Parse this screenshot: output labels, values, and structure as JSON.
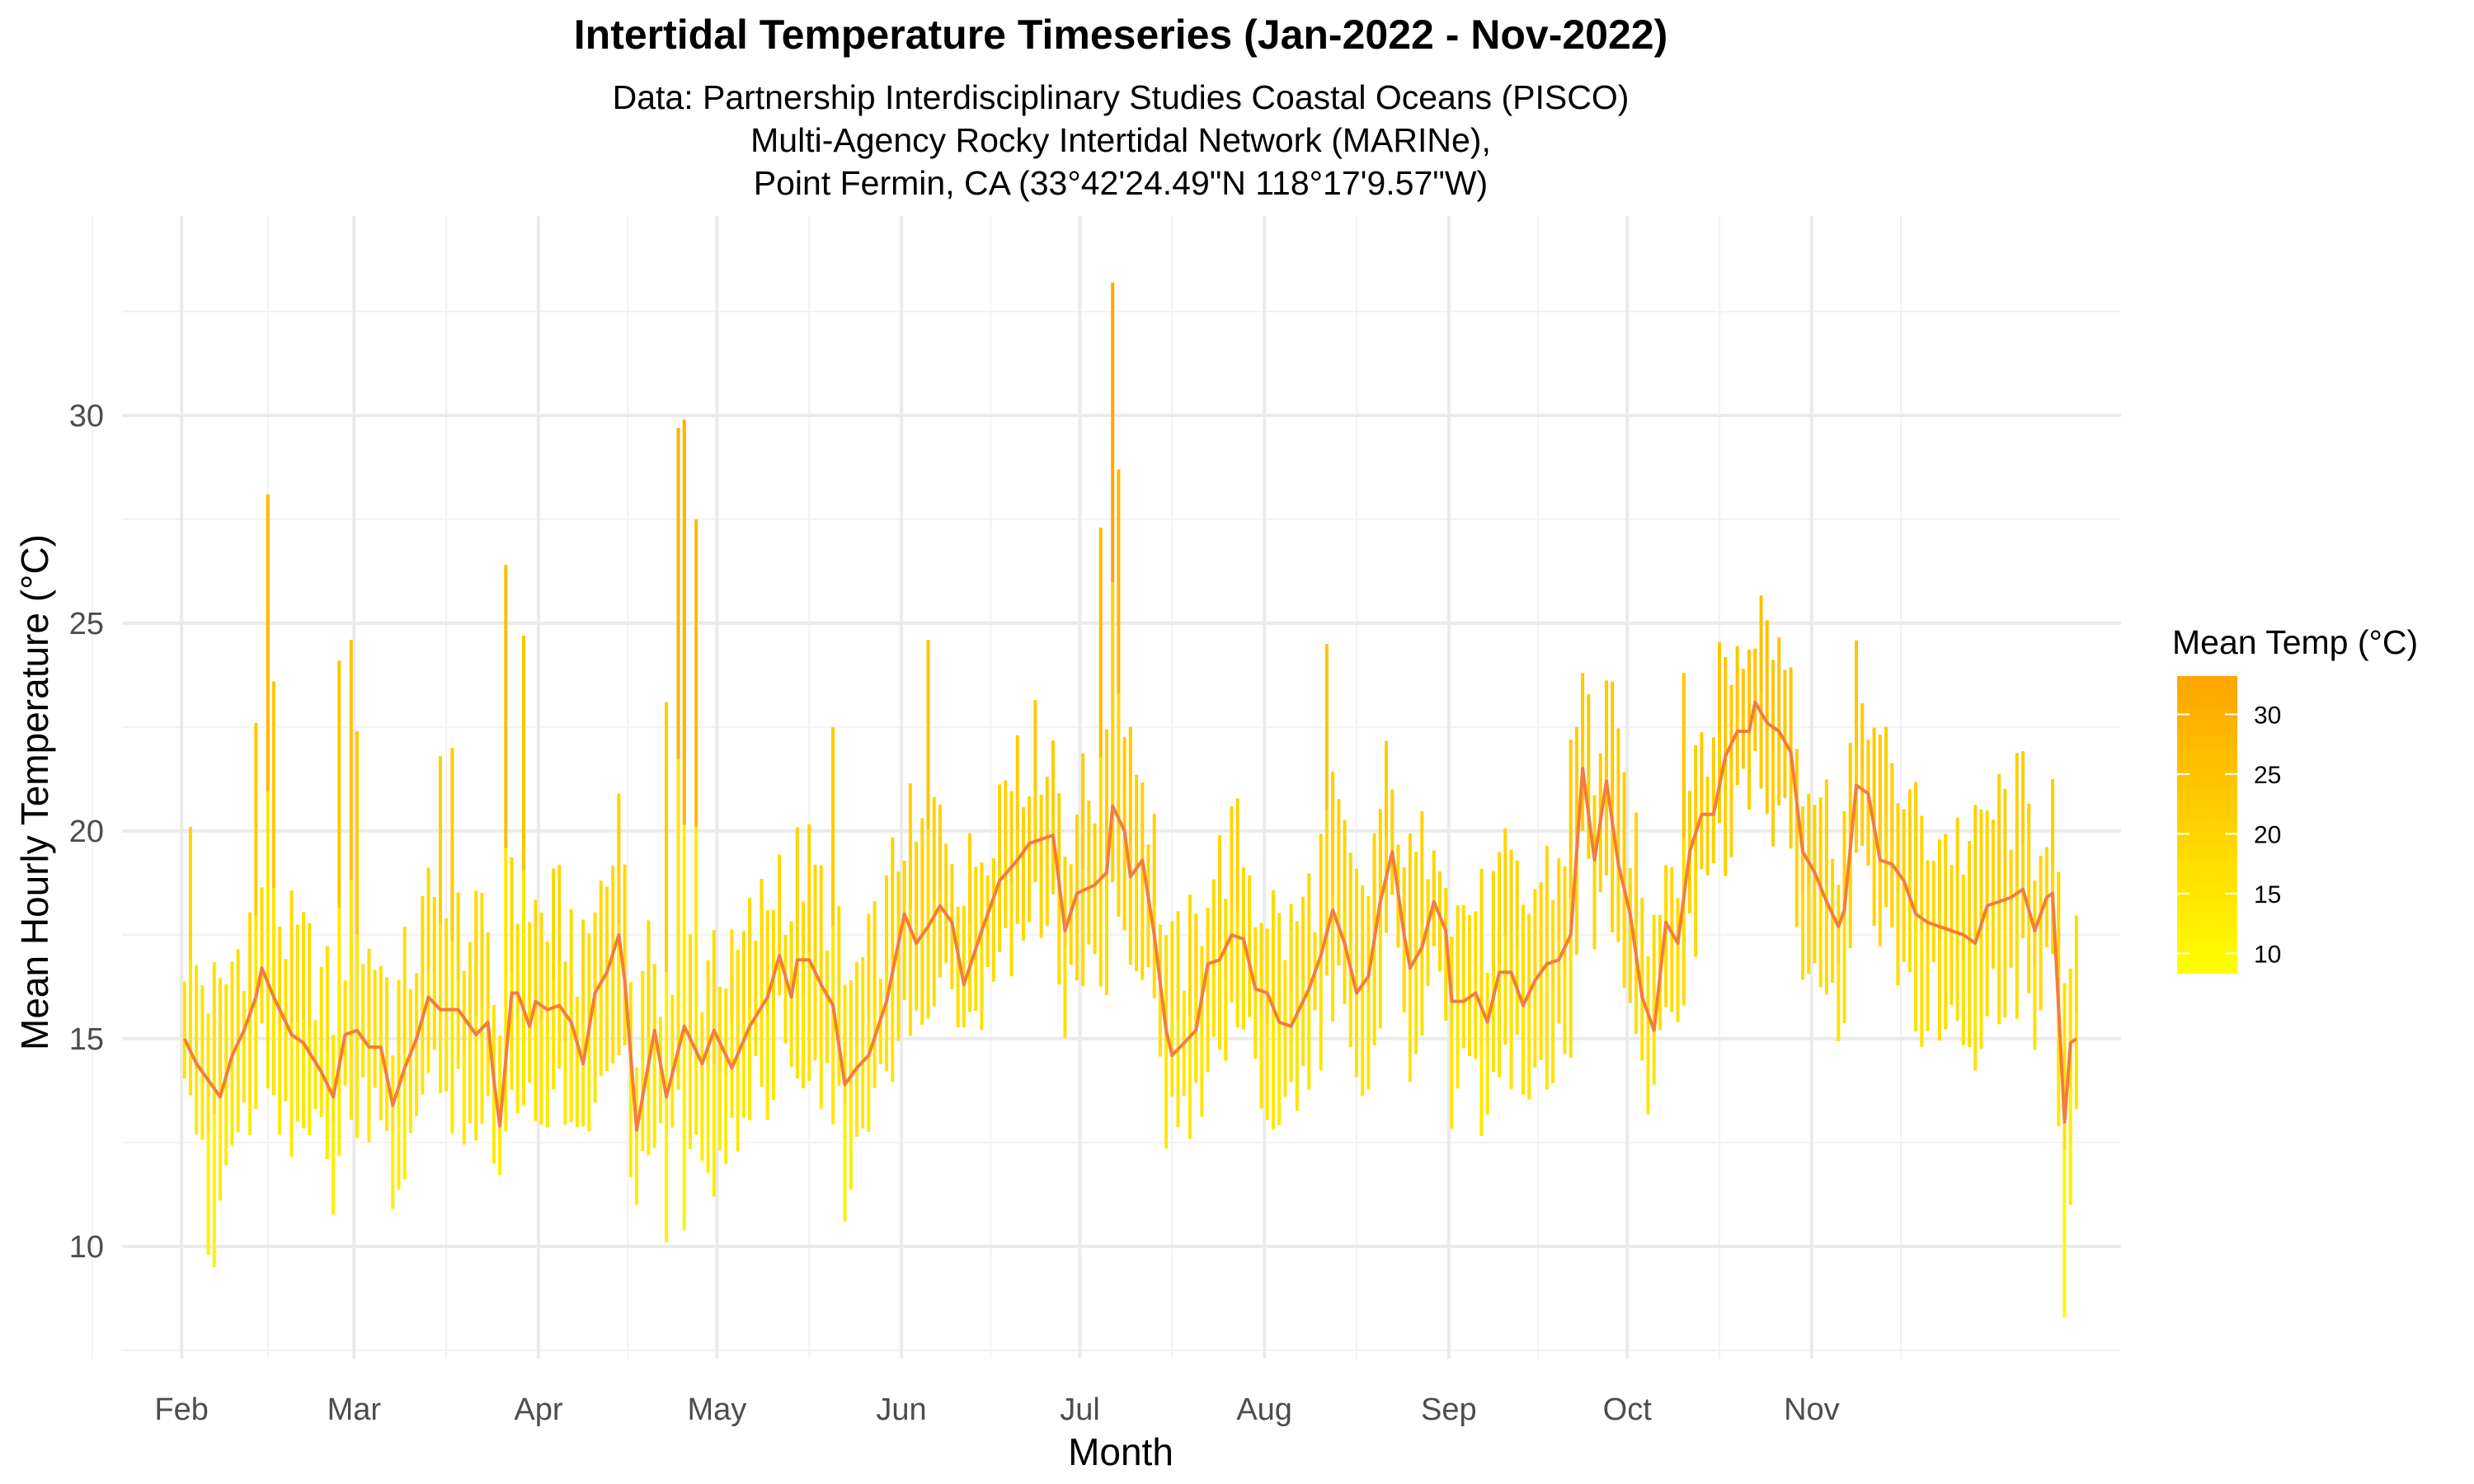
{
  "chart_data": {
    "type": "line",
    "title": "Intertidal Temperature Timeseries (Jan-2022 - Nov-2022)",
    "subtitle_lines": [
      "Data: Partnership Interdisciplinary Studies Coastal Oceans (PISCO)",
      "Multi-Agency Rocky Intertidal Network (MARINe),",
      "Point Fermin, CA (33°42'24.49\"N 118°17'9.57\"W)"
    ],
    "xlabel": "Month",
    "ylabel": "Mean Hourly Temperature (°C)",
    "x_ticks": [
      "Feb",
      "Mar",
      "Apr",
      "May",
      "Jun",
      "Jul",
      "Aug",
      "Sep",
      "Oct",
      "Nov"
    ],
    "y_ticks": [
      10,
      15,
      20,
      25,
      30
    ],
    "ylim": [
      7.3,
      34.8
    ],
    "grid": true,
    "legend": {
      "title": "Mean Temp (°C)",
      "ticks": [
        10,
        15,
        20,
        25,
        30
      ],
      "range": [
        8.3,
        33.2
      ],
      "colors": [
        "#FFFF00",
        "#FFA500"
      ],
      "placement": "right"
    },
    "line_color": "#F47C3C",
    "daily_mean_key_points": [
      {
        "date": "2022-01-31",
        "value": 15.0
      },
      {
        "date": "2022-02-02",
        "value": 14.4
      },
      {
        "date": "2022-02-04",
        "value": 14.0
      },
      {
        "date": "2022-02-06",
        "value": 13.6
      },
      {
        "date": "2022-02-08",
        "value": 14.6
      },
      {
        "date": "2022-02-10",
        "value": 15.2
      },
      {
        "date": "2022-02-12",
        "value": 16.0
      },
      {
        "date": "2022-02-13",
        "value": 16.7
      },
      {
        "date": "2022-02-15",
        "value": 16.0
      },
      {
        "date": "2022-02-18",
        "value": 15.1
      },
      {
        "date": "2022-02-20",
        "value": 14.9
      },
      {
        "date": "2022-02-23",
        "value": 14.2
      },
      {
        "date": "2022-02-25",
        "value": 13.6
      },
      {
        "date": "2022-02-27",
        "value": 15.1
      },
      {
        "date": "2022-03-01",
        "value": 15.2
      },
      {
        "date": "2022-03-03",
        "value": 14.8
      },
      {
        "date": "2022-03-05",
        "value": 14.8
      },
      {
        "date": "2022-03-07",
        "value": 13.4
      },
      {
        "date": "2022-03-09",
        "value": 14.3
      },
      {
        "date": "2022-03-11",
        "value": 15.0
      },
      {
        "date": "2022-03-13",
        "value": 16.0
      },
      {
        "date": "2022-03-15",
        "value": 15.7
      },
      {
        "date": "2022-03-18",
        "value": 15.7
      },
      {
        "date": "2022-03-21",
        "value": 15.1
      },
      {
        "date": "2022-03-23",
        "value": 15.4
      },
      {
        "date": "2022-03-24",
        "value": 14.0
      },
      {
        "date": "2022-03-25",
        "value": 12.9
      },
      {
        "date": "2022-03-27",
        "value": 16.1
      },
      {
        "date": "2022-03-28",
        "value": 16.1
      },
      {
        "date": "2022-03-30",
        "value": 15.3
      },
      {
        "date": "2022-03-31",
        "value": 15.9
      },
      {
        "date": "2022-04-02",
        "value": 15.7
      },
      {
        "date": "2022-04-04",
        "value": 15.8
      },
      {
        "date": "2022-04-06",
        "value": 15.4
      },
      {
        "date": "2022-04-08",
        "value": 14.4
      },
      {
        "date": "2022-04-10",
        "value": 16.1
      },
      {
        "date": "2022-04-12",
        "value": 16.6
      },
      {
        "date": "2022-04-14",
        "value": 17.5
      },
      {
        "date": "2022-04-15",
        "value": 16.4
      },
      {
        "date": "2022-04-17",
        "value": 12.8
      },
      {
        "date": "2022-04-20",
        "value": 15.2
      },
      {
        "date": "2022-04-22",
        "value": 13.6
      },
      {
        "date": "2022-04-25",
        "value": 15.3
      },
      {
        "date": "2022-04-28",
        "value": 14.4
      },
      {
        "date": "2022-04-30",
        "value": 15.2
      },
      {
        "date": "2022-05-03",
        "value": 14.3
      },
      {
        "date": "2022-05-06",
        "value": 15.3
      },
      {
        "date": "2022-05-09",
        "value": 16.0
      },
      {
        "date": "2022-05-11",
        "value": 17.0
      },
      {
        "date": "2022-05-13",
        "value": 16.0
      },
      {
        "date": "2022-05-14",
        "value": 16.9
      },
      {
        "date": "2022-05-16",
        "value": 16.9
      },
      {
        "date": "2022-05-18",
        "value": 16.3
      },
      {
        "date": "2022-05-20",
        "value": 15.8
      },
      {
        "date": "2022-05-22",
        "value": 13.9
      },
      {
        "date": "2022-05-24",
        "value": 14.3
      },
      {
        "date": "2022-05-26",
        "value": 14.6
      },
      {
        "date": "2022-05-29",
        "value": 15.9
      },
      {
        "date": "2022-06-01",
        "value": 18.0
      },
      {
        "date": "2022-06-03",
        "value": 17.3
      },
      {
        "date": "2022-06-05",
        "value": 17.7
      },
      {
        "date": "2022-06-07",
        "value": 18.2
      },
      {
        "date": "2022-06-09",
        "value": 17.8
      },
      {
        "date": "2022-06-11",
        "value": 16.3
      },
      {
        "date": "2022-06-14",
        "value": 17.6
      },
      {
        "date": "2022-06-17",
        "value": 18.8
      },
      {
        "date": "2022-06-20",
        "value": 19.3
      },
      {
        "date": "2022-06-22",
        "value": 19.7
      },
      {
        "date": "2022-06-24",
        "value": 19.8
      },
      {
        "date": "2022-06-26",
        "value": 19.9
      },
      {
        "date": "2022-06-28",
        "value": 17.6
      },
      {
        "date": "2022-06-30",
        "value": 18.5
      },
      {
        "date": "2022-07-03",
        "value": 18.7
      },
      {
        "date": "2022-07-05",
        "value": 19.0
      },
      {
        "date": "2022-07-06",
        "value": 20.6
      },
      {
        "date": "2022-07-08",
        "value": 20.0
      },
      {
        "date": "2022-07-09",
        "value": 18.9
      },
      {
        "date": "2022-07-11",
        "value": 19.3
      },
      {
        "date": "2022-07-13",
        "value": 17.5
      },
      {
        "date": "2022-07-15",
        "value": 15.2
      },
      {
        "date": "2022-07-16",
        "value": 14.6
      },
      {
        "date": "2022-07-18",
        "value": 14.9
      },
      {
        "date": "2022-07-20",
        "value": 15.2
      },
      {
        "date": "2022-07-22",
        "value": 16.8
      },
      {
        "date": "2022-07-24",
        "value": 16.9
      },
      {
        "date": "2022-07-26",
        "value": 17.5
      },
      {
        "date": "2022-07-28",
        "value": 17.4
      },
      {
        "date": "2022-07-30",
        "value": 16.2
      },
      {
        "date": "2022-08-01",
        "value": 16.1
      },
      {
        "date": "2022-08-03",
        "value": 15.4
      },
      {
        "date": "2022-08-05",
        "value": 15.3
      },
      {
        "date": "2022-08-08",
        "value": 16.2
      },
      {
        "date": "2022-08-10",
        "value": 17.0
      },
      {
        "date": "2022-08-12",
        "value": 18.1
      },
      {
        "date": "2022-08-14",
        "value": 17.3
      },
      {
        "date": "2022-08-16",
        "value": 16.1
      },
      {
        "date": "2022-08-18",
        "value": 16.5
      },
      {
        "date": "2022-08-20",
        "value": 18.3
      },
      {
        "date": "2022-08-22",
        "value": 19.5
      },
      {
        "date": "2022-08-24",
        "value": 17.5
      },
      {
        "date": "2022-08-25",
        "value": 16.7
      },
      {
        "date": "2022-08-27",
        "value": 17.2
      },
      {
        "date": "2022-08-29",
        "value": 18.3
      },
      {
        "date": "2022-08-31",
        "value": 17.6
      },
      {
        "date": "2022-09-01",
        "value": 15.9
      },
      {
        "date": "2022-09-03",
        "value": 15.9
      },
      {
        "date": "2022-09-05",
        "value": 16.1
      },
      {
        "date": "2022-09-07",
        "value": 15.4
      },
      {
        "date": "2022-09-09",
        "value": 16.6
      },
      {
        "date": "2022-09-11",
        "value": 16.6
      },
      {
        "date": "2022-09-13",
        "value": 15.8
      },
      {
        "date": "2022-09-15",
        "value": 16.4
      },
      {
        "date": "2022-09-17",
        "value": 16.8
      },
      {
        "date": "2022-09-19",
        "value": 16.9
      },
      {
        "date": "2022-09-21",
        "value": 17.5
      },
      {
        "date": "2022-09-23",
        "value": 21.5
      },
      {
        "date": "2022-09-25",
        "value": 19.3
      },
      {
        "date": "2022-09-27",
        "value": 21.2
      },
      {
        "date": "2022-09-29",
        "value": 19.2
      },
      {
        "date": "2022-10-01",
        "value": 18.0
      },
      {
        "date": "2022-10-03",
        "value": 16.0
      },
      {
        "date": "2022-10-05",
        "value": 15.2
      },
      {
        "date": "2022-10-07",
        "value": 17.8
      },
      {
        "date": "2022-10-09",
        "value": 17.3
      },
      {
        "date": "2022-10-11",
        "value": 19.5
      },
      {
        "date": "2022-10-13",
        "value": 20.4
      },
      {
        "date": "2022-10-15",
        "value": 20.4
      },
      {
        "date": "2022-10-17",
        "value": 21.8
      },
      {
        "date": "2022-10-19",
        "value": 22.4
      },
      {
        "date": "2022-10-21",
        "value": 22.4
      },
      {
        "date": "2022-10-22",
        "value": 23.1
      },
      {
        "date": "2022-10-24",
        "value": 22.6
      },
      {
        "date": "2022-10-26",
        "value": 22.4
      },
      {
        "date": "2022-10-28",
        "value": 21.9
      },
      {
        "date": "2022-10-30",
        "value": 19.5
      },
      {
        "date": "2022-11-01",
        "value": 19.0
      },
      {
        "date": "2022-11-03",
        "value": 18.3
      },
      {
        "date": "2022-11-05",
        "value": 17.7
      },
      {
        "date": "2022-11-06",
        "value": 18.1
      },
      {
        "date": "2022-11-08",
        "value": 21.1
      },
      {
        "date": "2022-11-10",
        "value": 20.9
      },
      {
        "date": "2022-11-12",
        "value": 19.3
      },
      {
        "date": "2022-11-14",
        "value": 19.2
      },
      {
        "date": "2022-11-16",
        "value": 18.8
      },
      {
        "date": "2022-11-18",
        "value": 18.0
      },
      {
        "date": "2022-11-20",
        "value": 17.8
      },
      {
        "date": "2022-11-22",
        "value": 17.7
      },
      {
        "date": "2022-11-24",
        "value": 17.6
      },
      {
        "date": "2022-11-26",
        "value": 17.5
      },
      {
        "date": "2022-11-28",
        "value": 17.3
      },
      {
        "date": "2022-11-30",
        "value": 18.2
      },
      {
        "date": "2022-12-02",
        "value": 18.3
      },
      {
        "date": "2022-12-04",
        "value": 18.4
      },
      {
        "date": "2022-12-06",
        "value": 18.6
      },
      {
        "date": "2022-12-08",
        "value": 17.6
      },
      {
        "date": "2022-12-10",
        "value": 18.4
      },
      {
        "date": "2022-12-11",
        "value": 18.5
      },
      {
        "date": "2022-12-13",
        "value": 13.0
      },
      {
        "date": "2022-12-14",
        "value": 14.9
      },
      {
        "date": "2022-12-15",
        "value": 15.0
      }
    ],
    "daily_max_peaks": [
      {
        "date": "2022-02-01",
        "value": 20.1
      },
      {
        "date": "2022-02-12",
        "value": 22.6
      },
      {
        "date": "2022-02-14",
        "value": 28.1
      },
      {
        "date": "2022-02-15",
        "value": 23.6
      },
      {
        "date": "2022-02-26",
        "value": 24.1
      },
      {
        "date": "2022-02-28",
        "value": 24.6
      },
      {
        "date": "2022-03-01",
        "value": 22.4
      },
      {
        "date": "2022-03-15",
        "value": 21.8
      },
      {
        "date": "2022-03-17",
        "value": 22.0
      },
      {
        "date": "2022-03-26",
        "value": 26.4
      },
      {
        "date": "2022-03-29",
        "value": 24.7
      },
      {
        "date": "2022-04-14",
        "value": 20.9
      },
      {
        "date": "2022-04-22",
        "value": 23.1
      },
      {
        "date": "2022-04-24",
        "value": 29.7
      },
      {
        "date": "2022-04-25",
        "value": 29.9
      },
      {
        "date": "2022-04-27",
        "value": 27.5
      },
      {
        "date": "2022-05-20",
        "value": 22.5
      },
      {
        "date": "2022-06-05",
        "value": 24.6
      },
      {
        "date": "2022-06-20",
        "value": 22.3
      },
      {
        "date": "2022-07-04",
        "value": 27.3
      },
      {
        "date": "2022-07-06",
        "value": 33.2
      },
      {
        "date": "2022-07-07",
        "value": 28.7
      },
      {
        "date": "2022-07-09",
        "value": 22.5
      },
      {
        "date": "2022-08-11",
        "value": 24.5
      },
      {
        "date": "2022-08-22",
        "value": 21.0
      },
      {
        "date": "2022-09-21",
        "value": 22.2
      },
      {
        "date": "2022-10-10",
        "value": 23.8
      },
      {
        "date": "2022-10-20",
        "value": 23.9
      },
      {
        "date": "2022-11-10",
        "value": 22.2
      }
    ],
    "daily_min_troughs": [
      {
        "date": "2022-02-04",
        "value": 9.8
      },
      {
        "date": "2022-02-05",
        "value": 9.5
      },
      {
        "date": "2022-02-06",
        "value": 11.1
      },
      {
        "date": "2022-03-24",
        "value": 12.0
      },
      {
        "date": "2022-04-17",
        "value": 11.0
      },
      {
        "date": "2022-04-22",
        "value": 10.1
      },
      {
        "date": "2022-04-25",
        "value": 10.4
      },
      {
        "date": "2022-04-30",
        "value": 11.2
      },
      {
        "date": "2022-05-22",
        "value": 10.6
      },
      {
        "date": "2022-07-16",
        "value": 13.6
      },
      {
        "date": "2022-09-02",
        "value": 13.8
      },
      {
        "date": "2022-12-13",
        "value": 8.3
      },
      {
        "date": "2022-12-14",
        "value": 11.0
      }
    ]
  }
}
